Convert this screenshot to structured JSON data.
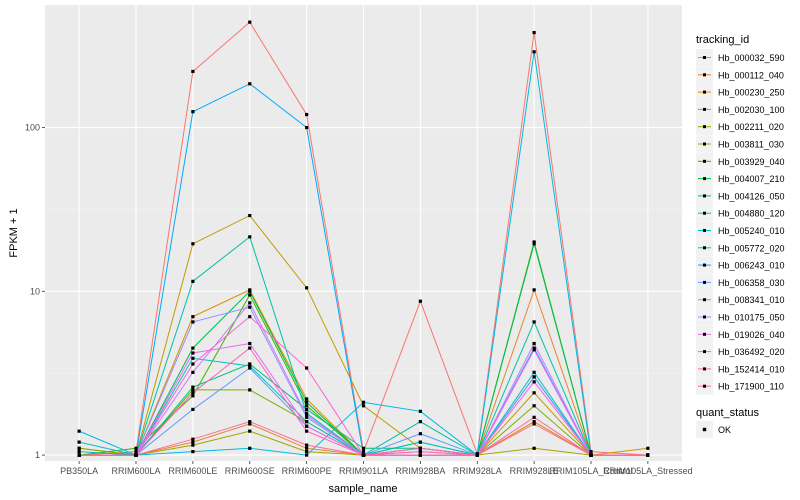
{
  "chart_data": {
    "type": "line",
    "xlabel": "sample_name",
    "ylabel": "FPKM + 1",
    "yscale": "log10",
    "ylim": [
      0.92,
      560
    ],
    "yticks": [
      1,
      10,
      100
    ],
    "ytick_labels": [
      "1",
      "10",
      "100"
    ],
    "grid": true,
    "legend_position": "right",
    "categories": [
      "PB350LA",
      "RRIM600LA",
      "RRIM600LE",
      "RRIM600SE",
      "RRIM600PE",
      "RRIM901LA",
      "RRIM928BA",
      "RRIM928LA",
      "RRIM928LE",
      "RRIM105LA_Control",
      "RRIM105LA_Stressed"
    ],
    "colour_legend": {
      "title": "tracking_id"
    },
    "shape_legend": {
      "title": "quant_status",
      "items": [
        "OK"
      ]
    },
    "series": [
      {
        "name": "Hb_000032_590",
        "color": "#F8766D",
        "values": [
          1.0,
          1.05,
          220,
          440,
          120,
          1.05,
          8.7,
          1.02,
          380,
          1.05,
          1.0
        ]
      },
      {
        "name": "Hb_000112_040",
        "color": "#EA8331",
        "values": [
          1.0,
          1.0,
          1.2,
          1.55,
          1.1,
          1.0,
          1.0,
          1.0,
          10.2,
          1.0,
          1.0
        ]
      },
      {
        "name": "Hb_000230_250",
        "color": "#D89000",
        "values": [
          1.1,
          1.0,
          7.0,
          10.2,
          2.2,
          1.0,
          1.1,
          1.0,
          1.6,
          1.0,
          1.1
        ]
      },
      {
        "name": "Hb_002030_100",
        "color": "#C09B00",
        "values": [
          1.0,
          1.0,
          19.5,
          29.0,
          10.5,
          2.0,
          1.1,
          1.0,
          2.4,
          1.0,
          1.0
        ]
      },
      {
        "name": "Hb_002211_020",
        "color": "#A3A500",
        "values": [
          1.0,
          1.0,
          1.15,
          1.4,
          1.05,
          1.0,
          1.0,
          1.0,
          1.1,
          1.0,
          1.0
        ]
      },
      {
        "name": "Hb_003811_030",
        "color": "#7CAE00",
        "values": [
          1.1,
          1.0,
          2.5,
          2.5,
          1.6,
          1.0,
          1.1,
          1.0,
          2.0,
          1.0,
          1.0
        ]
      },
      {
        "name": "Hb_003929_040",
        "color": "#39B600",
        "values": [
          1.0,
          1.1,
          2.3,
          9.5,
          2.0,
          1.0,
          1.0,
          1.0,
          20.0,
          1.0,
          1.0
        ]
      },
      {
        "name": "Hb_004007_210",
        "color": "#00BB4E",
        "values": [
          1.0,
          1.0,
          4.5,
          10.0,
          2.1,
          1.0,
          1.2,
          1.0,
          19.5,
          1.0,
          1.0
        ]
      },
      {
        "name": "Hb_004126_050",
        "color": "#00BF7D",
        "values": [
          1.0,
          1.0,
          2.6,
          3.6,
          1.9,
          1.1,
          1.1,
          1.0,
          3.0,
          1.0,
          1.0
        ]
      },
      {
        "name": "Hb_004880_120",
        "color": "#00C1A3",
        "values": [
          1.05,
          1.0,
          11.5,
          21.5,
          1.8,
          1.0,
          1.6,
          1.0,
          6.5,
          1.0,
          1.0
        ]
      },
      {
        "name": "Hb_005240_010",
        "color": "#00BFC4",
        "values": [
          1.2,
          1.0,
          3.9,
          3.5,
          1.6,
          1.0,
          1.2,
          1.0,
          3.2,
          1.0,
          1.0
        ]
      },
      {
        "name": "Hb_005772_020",
        "color": "#00B8E7",
        "values": [
          1.4,
          1.0,
          1.05,
          1.1,
          1.0,
          2.1,
          1.85,
          1.0,
          290,
          1.0,
          1.0
        ]
      },
      {
        "name": "Hb_006243_010",
        "color": "#00A9FF",
        "values": [
          1.0,
          1.0,
          125,
          185,
          100,
          1.0,
          1.0,
          1.0,
          4.5,
          1.0,
          1.0
        ]
      },
      {
        "name": "Hb_006358_030",
        "color": "#619CFF",
        "values": [
          1.0,
          1.0,
          1.9,
          3.4,
          1.5,
          1.0,
          1.35,
          1.0,
          3.0,
          1.0,
          1.0
        ]
      },
      {
        "name": "Hb_008341_010",
        "color": "#9590FF",
        "values": [
          1.0,
          1.0,
          6.5,
          8.0,
          1.7,
          1.0,
          1.0,
          1.0,
          4.4,
          1.0,
          1.0
        ]
      },
      {
        "name": "Hb_010175_050",
        "color": "#C77CFF",
        "values": [
          1.0,
          1.0,
          3.2,
          8.5,
          1.75,
          1.0,
          1.0,
          1.0,
          4.8,
          1.0,
          1.0
        ]
      },
      {
        "name": "Hb_019026_040",
        "color": "#E76BF3",
        "values": [
          1.0,
          1.0,
          4.2,
          4.8,
          1.5,
          1.0,
          1.05,
          1.0,
          4.4,
          1.0,
          1.0
        ]
      },
      {
        "name": "Hb_036492_020",
        "color": "#FA62DB",
        "values": [
          1.0,
          1.0,
          3.6,
          7.0,
          3.4,
          1.0,
          1.1,
          1.0,
          2.8,
          1.0,
          1.0
        ]
      },
      {
        "name": "Hb_152414_010",
        "color": "#FF62BC",
        "values": [
          1.0,
          1.0,
          2.4,
          4.5,
          1.4,
          1.0,
          1.0,
          1.0,
          1.7,
          1.0,
          1.0
        ]
      },
      {
        "name": "Hb_171900_110",
        "color": "#FF6C91",
        "values": [
          1.0,
          1.0,
          1.25,
          1.6,
          1.15,
          1.0,
          1.05,
          1.0,
          1.55,
          1.0,
          1.0
        ]
      }
    ]
  }
}
